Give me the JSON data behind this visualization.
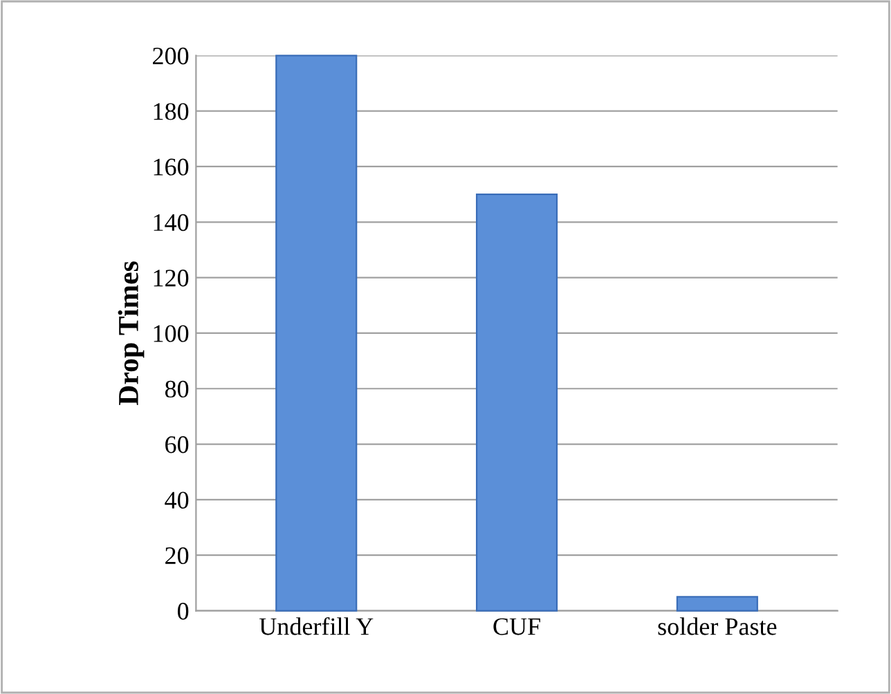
{
  "chart_data": {
    "type": "bar",
    "ylabel": "Drop Times",
    "categories": [
      "Underfill Y",
      "CUF",
      "solder Paste"
    ],
    "values": [
      200,
      150,
      5
    ],
    "color": "#5b8fd8",
    "ylim": [
      0,
      200
    ],
    "yticks": [
      0,
      20,
      40,
      60,
      80,
      100,
      120,
      140,
      160,
      180,
      200
    ],
    "grid": "y"
  }
}
